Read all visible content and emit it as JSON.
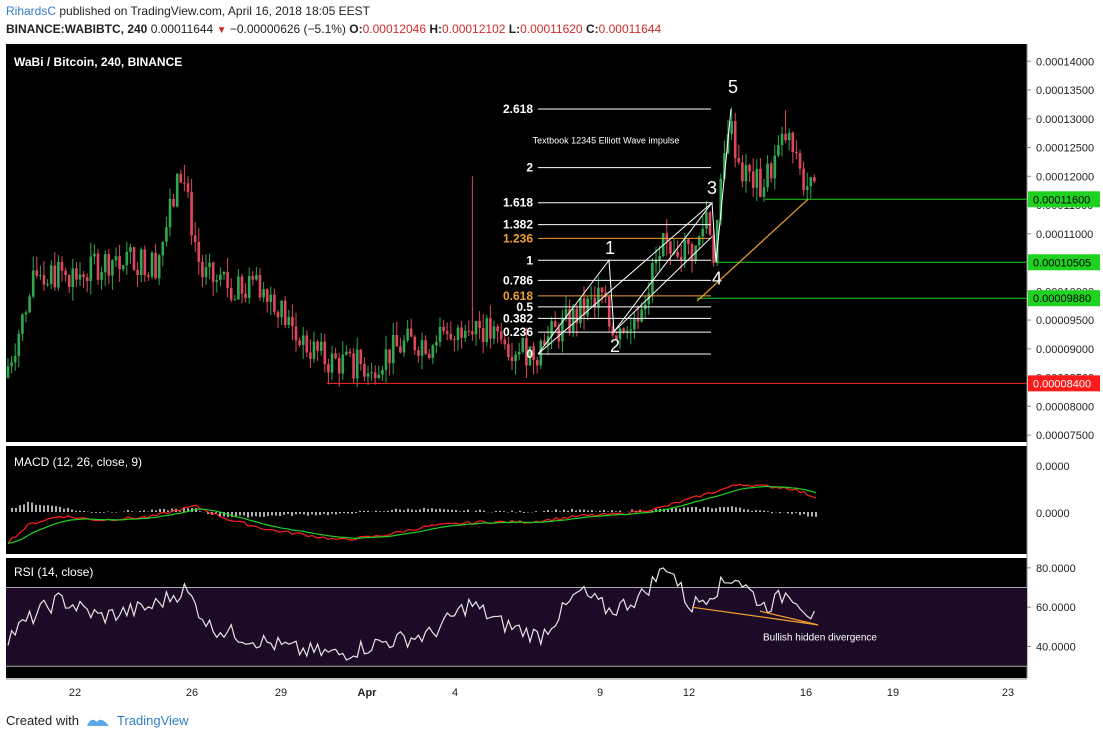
{
  "header": {
    "author": "RihardsC",
    "published_text": "published on TradingView.com, April 16, 2018 18:05 EEST",
    "symbol_line": "BINANCE:WABIBTC, 240",
    "last": "0.00011644",
    "change": "−0.00000626 (−5.1%)",
    "o_label": "O:",
    "o_value": "0.00012046",
    "h_label": "H:",
    "h_value": "0.00012102",
    "l_label": "L:",
    "l_value": "0.00011620",
    "c_label": "C:",
    "c_value": "0.00011644"
  },
  "footer": {
    "created_with": "Created with",
    "brand": "TradingView"
  },
  "colors": {
    "up": "#2fa84f",
    "down": "#e0475e",
    "background": "#000000",
    "grid": "#c8c8c8",
    "fib_orange": "#f0a030",
    "green_line": "#1fd21f",
    "red_line": "#ff2a2a",
    "macd": "#ff2020",
    "signal": "#20d020",
    "rsi": "#e6e6e6",
    "text": "#ffffff"
  },
  "chart_data": [
    {
      "type": "candlestick",
      "title": "WaBi / Bitcoin, 240, BINANCE",
      "y_ticks": [
        "0.00014000",
        "0.00013500",
        "0.00013000",
        "0.00012500",
        "0.00012000",
        "0.00011500",
        "0.00011000",
        "0.00010500",
        "0.00010000",
        "0.00009500",
        "0.00009000",
        "0.00008500",
        "0.00008000",
        "0.00007500"
      ],
      "ylim": [
        7.38e-05,
        0.000143
      ],
      "x_ticks": [
        "22",
        "26",
        "29",
        "Apr",
        "4",
        "9",
        "12",
        "16",
        "19",
        "23"
      ],
      "price_labels": [
        {
          "value": "0.00011600",
          "color": "green"
        },
        {
          "value": "0.00010505",
          "color": "green"
        },
        {
          "value": "0.00009880",
          "color": "green"
        },
        {
          "value": "0.00008400",
          "color": "red"
        }
      ],
      "fib_levels": [
        {
          "label": "2.618",
          "value": 0.0001317
        },
        {
          "label": "2",
          "value": 0.0001215
        },
        {
          "label": "1.618",
          "value": 0.0001154
        },
        {
          "label": "1.382",
          "value": 0.0001116
        },
        {
          "label": "1.236",
          "value": 0.0001092,
          "highlight": true
        },
        {
          "label": "1",
          "value": 0.0001054
        },
        {
          "label": "0.786",
          "value": 0.0001019
        },
        {
          "label": "0.618",
          "value": 9.92e-05,
          "highlight": true
        },
        {
          "label": "0.5",
          "value": 9.73e-05
        },
        {
          "label": "0.382",
          "value": 9.53e-05
        },
        {
          "label": "0.236",
          "value": 9.29e-05
        },
        {
          "label": "0",
          "value": 8.91e-05
        }
      ],
      "wave_labels": [
        "1",
        "2",
        "3",
        "4",
        "5"
      ],
      "annotation": "Textbook 12345 Elliott Wave impulse"
    },
    {
      "type": "line",
      "title": "MACD (12, 26, close, 9)",
      "y_ticks": [
        "0.0000",
        "0.0000"
      ],
      "series": [
        {
          "name": "MACD"
        },
        {
          "name": "Signal"
        }
      ]
    },
    {
      "type": "line",
      "title": "RSI (14, close)",
      "y_ticks": [
        "80.0000",
        "60.0000",
        "40.0000"
      ],
      "ylim": [
        24,
        85
      ],
      "bands": [
        70,
        30
      ],
      "annotation": "Bullish hidden divergence"
    }
  ]
}
